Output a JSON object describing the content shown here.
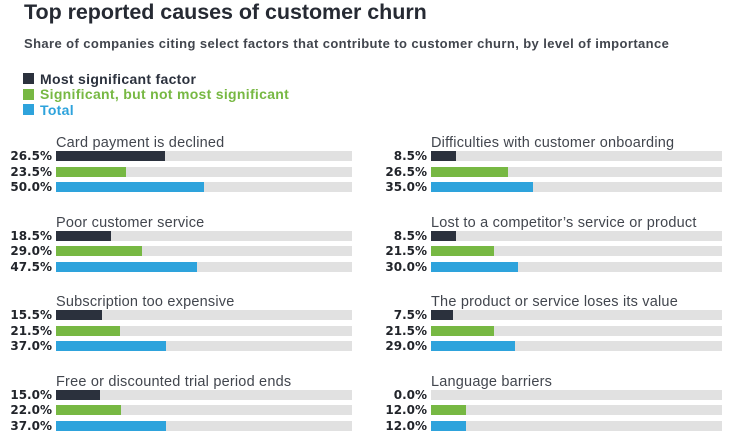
{
  "header": {
    "title": "Top reported causes of customer churn",
    "subtitle": "Share of companies citing select factors that contribute to customer churn, by level of importance"
  },
  "colors": {
    "most_significant": "#2b313d",
    "significant": "#77b843",
    "total": "#2ea3dc",
    "track": "#e1e1e1"
  },
  "chart_data": {
    "type": "bar",
    "title": "Top reported causes of customer churn",
    "subtitle": "Share of companies citing select factors that contribute to customer churn, by level of importance",
    "unit": "percent",
    "xlim": [
      0,
      100
    ],
    "legend_position": "top-left",
    "series_names": [
      "Most significant factor",
      "Significant, but not most significant",
      "Total"
    ],
    "legend": [
      {
        "label": "Most significant factor",
        "color": "#2b313d"
      },
      {
        "label": "Significant, but not most significant",
        "color": "#77b843"
      },
      {
        "label": "Total",
        "color": "#2ea3dc"
      }
    ],
    "groups": [
      {
        "title": "Card payment is declined",
        "column": "left",
        "rows": [
          {
            "series": "Most significant factor",
            "label": "26.5%",
            "value": 26.5,
            "bar_pct": 36.8
          },
          {
            "series": "Significant, but not most significant",
            "label": "23.5%",
            "value": 23.5
          },
          {
            "series": "Total",
            "label": "50.0%",
            "value": 50.0
          }
        ]
      },
      {
        "title": "Poor customer service",
        "column": "left",
        "rows": [
          {
            "series": "Most significant factor",
            "label": "18.5%",
            "value": 18.5
          },
          {
            "series": "Significant, but not most significant",
            "label": "29.0%",
            "value": 29.0
          },
          {
            "series": "Total",
            "label": "47.5%",
            "value": 47.5
          }
        ]
      },
      {
        "title": "Subscription too expensive",
        "column": "left",
        "rows": [
          {
            "series": "Most significant factor",
            "label": "15.5%",
            "value": 15.5
          },
          {
            "series": "Significant, but not most significant",
            "label": "21.5%",
            "value": 21.5
          },
          {
            "series": "Total",
            "label": "37.0%",
            "value": 37.0
          }
        ]
      },
      {
        "title": "Free or discounted trial period ends",
        "column": "left",
        "rows": [
          {
            "series": "Most significant factor",
            "label": "15.0%",
            "value": 15.0
          },
          {
            "series": "Significant, but not most significant",
            "label": "22.0%",
            "value": 22.0
          },
          {
            "series": "Total",
            "label": "37.0%",
            "value": 37.0
          }
        ]
      },
      {
        "title": "Difficulties with customer onboarding",
        "column": "right",
        "rows": [
          {
            "series": "Most significant factor",
            "label": "8.5%",
            "value": 8.5
          },
          {
            "series": "Significant, but not most significant",
            "label": "26.5%",
            "value": 26.5
          },
          {
            "series": "Total",
            "label": "35.0%",
            "value": 35.0
          }
        ]
      },
      {
        "title": "Lost to a competitor’s service or product",
        "column": "right",
        "rows": [
          {
            "series": "Most significant factor",
            "label": "8.5%",
            "value": 8.5
          },
          {
            "series": "Significant, but not most significant",
            "label": "21.5%",
            "value": 21.5
          },
          {
            "series": "Total",
            "label": "30.0%",
            "value": 30.0
          }
        ]
      },
      {
        "title": "The product or service loses its value",
        "column": "right",
        "rows": [
          {
            "series": "Most significant factor",
            "label": "7.5%",
            "value": 7.5
          },
          {
            "series": "Significant, but not most significant",
            "label": "21.5%",
            "value": 21.5
          },
          {
            "series": "Total",
            "label": "29.0%",
            "value": 29.0
          }
        ]
      },
      {
        "title": "Language barriers",
        "column": "right",
        "rows": [
          {
            "series": "Most significant factor",
            "label": "0.0%",
            "value": 0.0
          },
          {
            "series": "Significant, but not most significant",
            "label": "12.0%",
            "value": 12.0
          },
          {
            "series": "Total",
            "label": "12.0%",
            "value": 12.0
          }
        ]
      }
    ]
  }
}
